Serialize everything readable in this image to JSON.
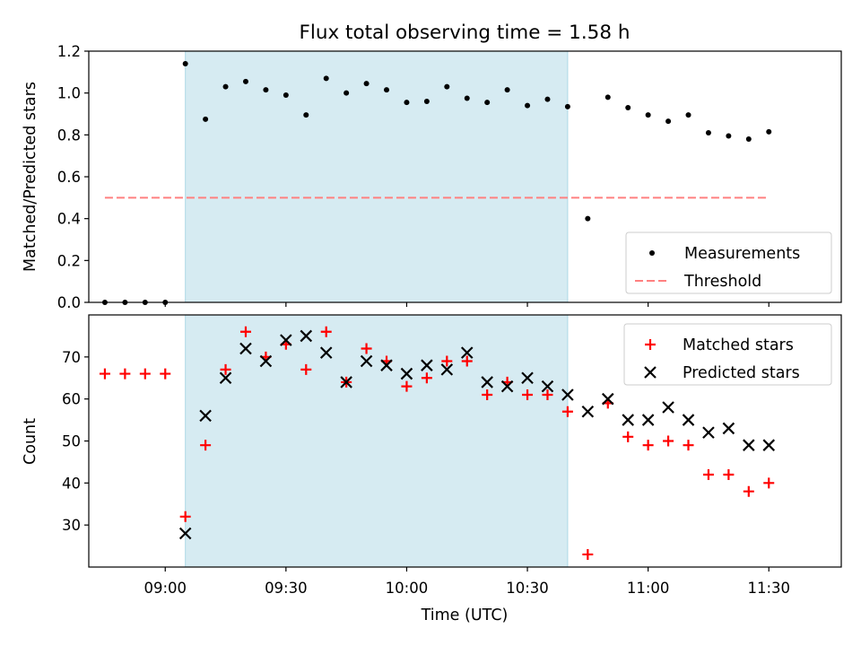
{
  "chart_data": [
    {
      "type": "scatter",
      "title": "Flux total observing time = 1.58 h",
      "ylabel": "Matched/Predicted stars",
      "xlabel": "",
      "ylim": [
        0,
        1.2
      ],
      "yticks": [
        "0.0",
        "0.2",
        "0.4",
        "0.6",
        "0.8",
        "1.0",
        "1.2"
      ],
      "shaded_x_range": [
        "09:05",
        "10:40"
      ],
      "legend": {
        "position": "bottom-right",
        "entries": [
          "Measurements",
          "Threshold"
        ]
      },
      "series": [
        {
          "name": "Measurements",
          "marker": "dot",
          "color": "#000000",
          "x": [
            "08:45",
            "08:50",
            "08:55",
            "09:00",
            "09:05",
            "09:10",
            "09:15",
            "09:20",
            "09:25",
            "09:30",
            "09:35",
            "09:40",
            "09:45",
            "09:50",
            "09:55",
            "10:00",
            "10:05",
            "10:10",
            "10:15",
            "10:20",
            "10:25",
            "10:30",
            "10:35",
            "10:40",
            "10:45",
            "10:50",
            "10:55",
            "11:00",
            "11:05",
            "11:10",
            "11:15",
            "11:20",
            "11:25",
            "11:30"
          ],
          "y": [
            0,
            0,
            0,
            0,
            1.14,
            0.875,
            1.03,
            1.055,
            1.015,
            0.99,
            0.895,
            1.07,
            1.0,
            1.045,
            1.015,
            0.955,
            0.96,
            1.03,
            0.975,
            0.955,
            1.015,
            0.94,
            0.97,
            0.935,
            0.4,
            0.98,
            0.93,
            0.895,
            0.865,
            0.895,
            0.81,
            0.795,
            0.78,
            0.815
          ]
        },
        {
          "name": "Threshold",
          "style": "dashed",
          "color": "#ff8080",
          "x": [
            "08:45",
            "11:30"
          ],
          "y": [
            0.5,
            0.5
          ]
        }
      ]
    },
    {
      "type": "scatter",
      "title": "",
      "ylabel": "Count",
      "xlabel": "Time (UTC)",
      "ylim": [
        20,
        80
      ],
      "yticks": [
        "30",
        "40",
        "50",
        "60",
        "70"
      ],
      "xlim": [
        "08:41",
        "11:48"
      ],
      "xticks": [
        "09:00",
        "09:30",
        "10:00",
        "10:30",
        "11:00",
        "11:30"
      ],
      "shaded_x_range": [
        "09:05",
        "10:40"
      ],
      "legend": {
        "position": "top-right",
        "entries": [
          "Matched stars",
          "Predicted stars"
        ]
      },
      "series": [
        {
          "name": "Matched stars",
          "marker": "plus",
          "color": "#ff0000",
          "x": [
            "08:45",
            "08:50",
            "08:55",
            "09:00",
            "09:05",
            "09:10",
            "09:15",
            "09:20",
            "09:25",
            "09:30",
            "09:35",
            "09:40",
            "09:45",
            "09:50",
            "09:55",
            "10:00",
            "10:05",
            "10:10",
            "10:15",
            "10:20",
            "10:25",
            "10:30",
            "10:35",
            "10:40",
            "10:45",
            "10:50",
            "10:55",
            "11:00",
            "11:05",
            "11:10",
            "11:15",
            "11:20",
            "11:25",
            "11:30"
          ],
          "y": [
            66,
            66,
            66,
            66,
            32,
            49,
            67,
            76,
            70,
            73,
            67,
            76,
            64,
            72,
            69,
            63,
            65,
            69,
            69,
            61,
            64,
            61,
            61,
            57,
            23,
            59,
            51,
            49,
            50,
            49,
            42,
            42,
            38,
            40
          ]
        },
        {
          "name": "Predicted stars",
          "marker": "x",
          "color": "#000000",
          "x": [
            "09:05",
            "09:10",
            "09:15",
            "09:20",
            "09:25",
            "09:30",
            "09:35",
            "09:40",
            "09:45",
            "09:50",
            "09:55",
            "10:00",
            "10:05",
            "10:10",
            "10:15",
            "10:20",
            "10:25",
            "10:30",
            "10:35",
            "10:40",
            "10:45",
            "10:50",
            "10:55",
            "11:00",
            "11:05",
            "11:10",
            "11:15",
            "11:20",
            "11:25",
            "11:30"
          ],
          "y": [
            28,
            56,
            65,
            72,
            69,
            74,
            75,
            71,
            64,
            69,
            68,
            66,
            68,
            67,
            71,
            64,
            63,
            65,
            63,
            61,
            57,
            60,
            55,
            55,
            58,
            55,
            52,
            53,
            49,
            49
          ]
        }
      ]
    }
  ],
  "colors": {
    "shade_fill": "#add8e6",
    "matched": "#ff0000",
    "predicted": "#000000",
    "measurements": "#000000",
    "threshold": "#ff8080"
  }
}
